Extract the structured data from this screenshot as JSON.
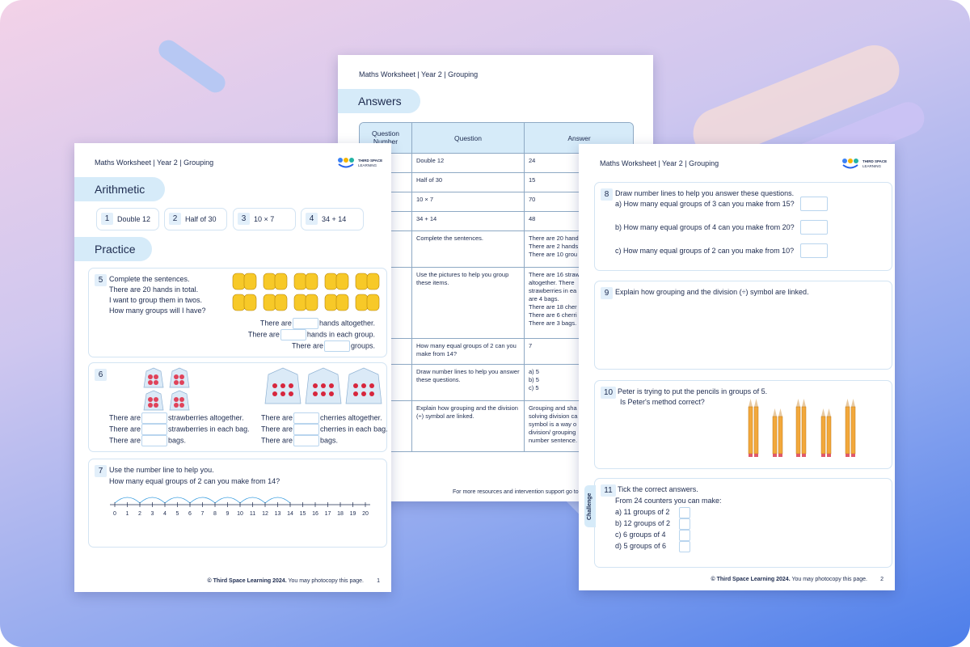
{
  "left_page": {
    "header": "Maths Worksheet | Year 2 | Grouping",
    "logo": [
      "THIRD SPACE",
      "LEARNING"
    ],
    "arithmetic": {
      "title": "Arithmetic",
      "items": [
        {
          "number": "1",
          "text": "Double 12"
        },
        {
          "number": "2",
          "text": "Half of 30"
        },
        {
          "number": "3",
          "text": "10 × 7"
        },
        {
          "number": "4",
          "text": "34 + 14"
        }
      ]
    },
    "practice": {
      "title": "Practice",
      "q5": {
        "number": "5",
        "lines": [
          "Complete the sentences.",
          "There are 20 hands in total.",
          "I want to group them in twos.",
          "How many groups will I have?"
        ],
        "answers": [
          {
            "before": "There are",
            "after": "hands altogether."
          },
          {
            "before": "There are",
            "after": "hands in each group."
          },
          {
            "before": "There are",
            "after": "groups."
          }
        ]
      },
      "q6": {
        "number": "6",
        "left": [
          {
            "before": "There are",
            "after": "strawberries altogether."
          },
          {
            "before": "There are",
            "after": "strawberries in each bag."
          },
          {
            "before": "There are",
            "after": "bags."
          }
        ],
        "right": [
          {
            "before": "There are",
            "after": "cherries altogether."
          },
          {
            "before": "There are",
            "after": "cherries in each bag."
          },
          {
            "before": "There are",
            "after": "bags."
          }
        ]
      },
      "q7": {
        "number": "7",
        "lines": [
          "Use the number line to help you.",
          "How many equal groups of 2 can you make from 14?"
        ],
        "number_line": [
          0,
          1,
          2,
          3,
          4,
          5,
          6,
          7,
          8,
          9,
          10,
          11,
          12,
          13,
          14,
          15,
          16,
          17,
          18,
          19,
          20
        ]
      }
    },
    "footer": {
      "copyright": "© Third Space Learning 2024.",
      "note": "You may photocopy this page.",
      "page": "1"
    }
  },
  "answers_page": {
    "header": "Maths Worksheet | Year 2 | Grouping",
    "title": "Answers",
    "columns": [
      "Question Number",
      "Question",
      "Answer"
    ],
    "rows": [
      {
        "question": "Double 12",
        "answer": [
          "24"
        ]
      },
      {
        "question": "Half of 30",
        "answer": [
          "15"
        ]
      },
      {
        "question": "10 × 7",
        "answer": [
          "70"
        ]
      },
      {
        "question": "34 + 14",
        "answer": [
          "48"
        ]
      },
      {
        "question": "Complete the sentences.",
        "answer": [
          "There are 20 hand",
          "There are 2 hands",
          "There are 10 grou"
        ]
      },
      {
        "question": "Use the pictures to help you group these items.",
        "answer": [
          "There are 16 straw",
          "altogether. There",
          "strawberries in ea",
          "are 4 bags.",
          "There are 18 cher",
          "There are 6 cherri",
          "There are 3 bags."
        ]
      },
      {
        "question": "How many equal groups of 2 can you make from 14?",
        "answer": [
          "7"
        ]
      },
      {
        "question": "Draw number lines to help you answer these questions.",
        "answer": [
          "a) 5",
          "b) 5",
          "c) 5"
        ]
      },
      {
        "question": "Explain how grouping and the division (÷) symbol are linked.",
        "answer": [
          "Grouping and sha",
          "solving division ca",
          "symbol is a way o",
          "division/ grouping",
          "number sentence."
        ]
      }
    ],
    "footer": "For more resources and intervention support go to"
  },
  "right_page": {
    "header": "Maths Worksheet | Year 2 | Grouping",
    "logo": [
      "THIRD SPACE",
      "LEARNING"
    ],
    "q8": {
      "number": "8",
      "text": "Draw number lines to help you answer these questions.",
      "parts": [
        "a) How many equal groups of 3 can you make from 15?",
        "b) How many equal groups of 4 can you make from 20?",
        "c) How many equal groups of 2 can you make from 10?"
      ]
    },
    "q9": {
      "number": "9",
      "text": "Explain how grouping and the division (÷) symbol are linked."
    },
    "q10": {
      "number": "10",
      "lines": [
        "Peter is trying to put the pencils in groups of 5.",
        "Is Peter's method correct?"
      ]
    },
    "q11": {
      "number": "11",
      "tag": "Challenge",
      "lines": [
        "Tick the correct answers.",
        "From 24 counters you can make:"
      ],
      "options": [
        "a) 11 groups of 2",
        "b) 12 groups of 2",
        "c) 6 groups of 4",
        "d) 5 groups of 6"
      ]
    },
    "footer": {
      "copyright": "© Third Space Learning 2024.",
      "note": "You may photocopy this page.",
      "page": "2"
    }
  }
}
